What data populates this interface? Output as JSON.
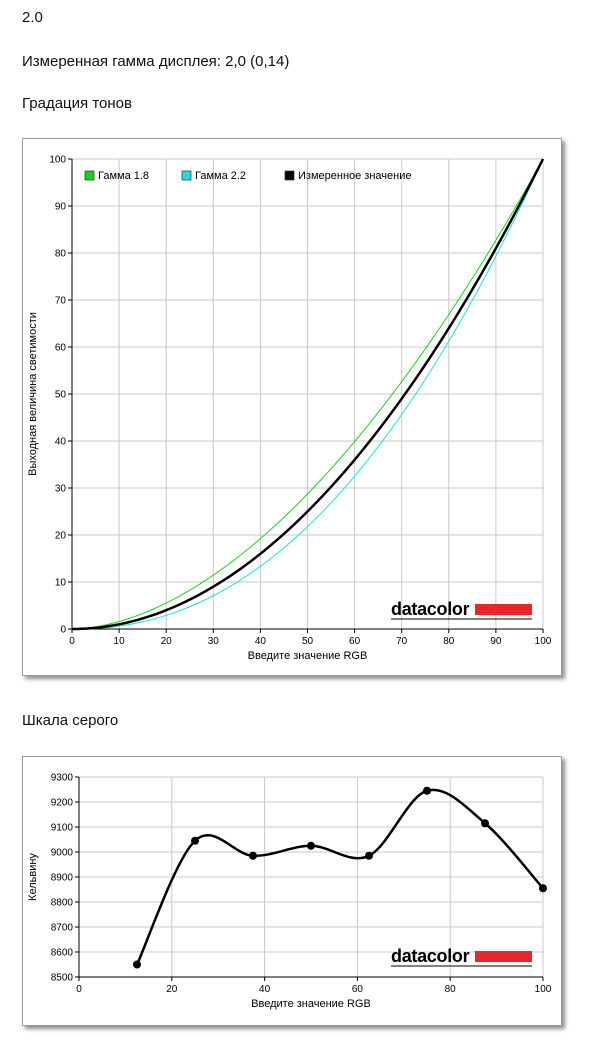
{
  "header": {
    "value": "2.0",
    "measured_line": "Измеренная гамма дисплея: 2,0 (0,14)",
    "tone_title": "Градация тонов",
    "gray_title": "Шкала серого"
  },
  "logo": {
    "text": "datacolor",
    "color": "#e8262d"
  },
  "chart_data": [
    {
      "type": "line",
      "xlabel": "Введите значение RGB",
      "ylabel": "Выходная величина светимости",
      "xlim": [
        0,
        100
      ],
      "ylim": [
        0,
        100
      ],
      "xticks": [
        0,
        10,
        20,
        30,
        40,
        50,
        60,
        70,
        80,
        90,
        100
      ],
      "yticks": [
        0,
        10,
        20,
        30,
        40,
        50,
        60,
        70,
        80,
        90,
        100
      ],
      "grid": true,
      "legend_position": "top-left",
      "series": [
        {
          "name": "Гамма 1.8",
          "color": "#22cc22",
          "gamma": 1.8,
          "width": 1
        },
        {
          "name": "Гамма 2.2",
          "color": "#22dddd",
          "gamma": 2.2,
          "width": 1
        },
        {
          "name": "Измеренное значение",
          "color": "#000000",
          "gamma": 2.0,
          "width": 2.5
        }
      ]
    },
    {
      "type": "line",
      "xlabel": "Введите значение RGB",
      "ylabel": "Кельвину",
      "xlim": [
        0,
        100
      ],
      "ylim": [
        8500,
        9300
      ],
      "xticks": [
        0,
        20,
        40,
        60,
        80,
        100
      ],
      "yticks": [
        8500,
        8600,
        8700,
        8800,
        8900,
        9000,
        9100,
        9200,
        9300
      ],
      "grid": true,
      "series": [
        {
          "color": "#000000",
          "x": [
            12.5,
            25,
            37.5,
            50,
            62.5,
            75,
            87.5,
            100
          ],
          "y": [
            8550,
            9045,
            8985,
            9025,
            8985,
            9245,
            9115,
            8855
          ]
        }
      ]
    }
  ]
}
